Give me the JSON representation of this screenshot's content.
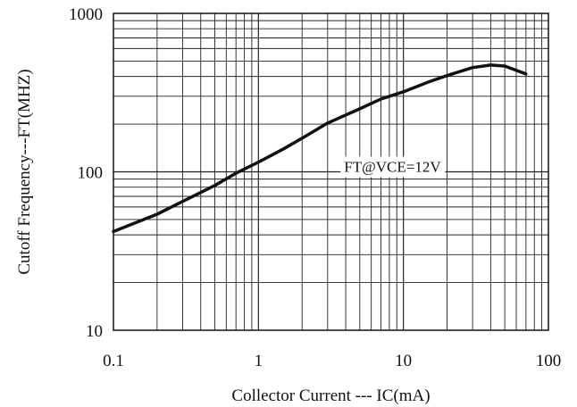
{
  "chart_data": {
    "type": "line",
    "title": "",
    "xlabel": "Collector Current --- IC(mA)",
    "ylabel": "Cutoff Frequency---FT(MHZ)",
    "x_scale": "log",
    "y_scale": "log",
    "xlim": [
      0.1,
      100
    ],
    "ylim": [
      10,
      1000
    ],
    "grid": true,
    "x_ticks": [
      {
        "value": 0.1,
        "label": "0.1"
      },
      {
        "value": 1,
        "label": "1"
      },
      {
        "value": 10,
        "label": "10"
      },
      {
        "value": 100,
        "label": "100"
      }
    ],
    "y_ticks": [
      {
        "value": 10,
        "label": "10"
      },
      {
        "value": 100,
        "label": "100"
      },
      {
        "value": 1000,
        "label": "1000"
      }
    ],
    "annotation": {
      "text": "FT@VCE=12V",
      "x": 3.9,
      "y": 100
    },
    "series": [
      {
        "x": [
          0.1,
          0.2,
          0.3,
          0.5,
          0.7,
          1,
          1.5,
          2,
          3,
          5,
          7,
          10,
          15,
          20,
          30,
          40,
          50,
          70
        ],
        "y": [
          42,
          54,
          65,
          82,
          98,
          115,
          140,
          163,
          203,
          250,
          288,
          320,
          370,
          405,
          455,
          472,
          465,
          415
        ]
      }
    ]
  }
}
